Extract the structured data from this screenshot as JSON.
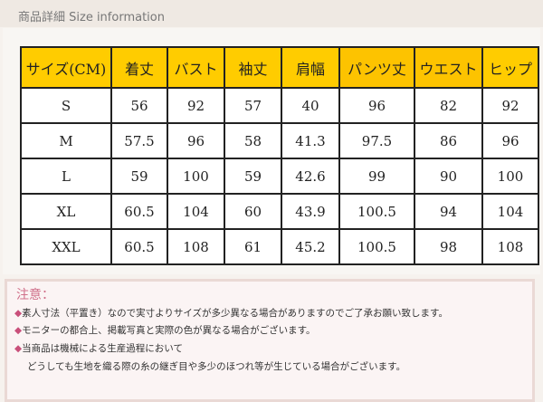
{
  "title": "商品詳細 Size information",
  "table": {
    "headers": [
      "サイズ(CM)",
      "着丈",
      "バスト",
      "袖丈",
      "肩幅",
      "パンツ丈",
      "ウエスト",
      "ヒップ"
    ],
    "rows": [
      [
        "S",
        "56",
        "92",
        "57",
        "40",
        "96",
        "82",
        "92"
      ],
      [
        "M",
        "57.5",
        "96",
        "58",
        "41.3",
        "97.5",
        "86",
        "96"
      ],
      [
        "L",
        "59",
        "100",
        "59",
        "42.6",
        "99",
        "90",
        "100"
      ],
      [
        "XL",
        "60.5",
        "104",
        "60",
        "43.9",
        "100.5",
        "94",
        "104"
      ],
      [
        "XXL",
        "60.5",
        "108",
        "61",
        "45.2",
        "100.5",
        "98",
        "108"
      ]
    ]
  },
  "notes": {
    "title": "注意：",
    "bullet": "◆",
    "lines": [
      "素人寸法（平置き）なので実寸よりサイズが多少異なる場合がありますのでご了承お願い致します。",
      "モニターの都合上、掲載写真と実際の色が異なる場合がございます。",
      "当商品は機械による生産過程において"
    ],
    "continuation": "どうしても生地を織る際の糸の継ぎ目や多少のほつれ等が生じている場合がございます。"
  }
}
